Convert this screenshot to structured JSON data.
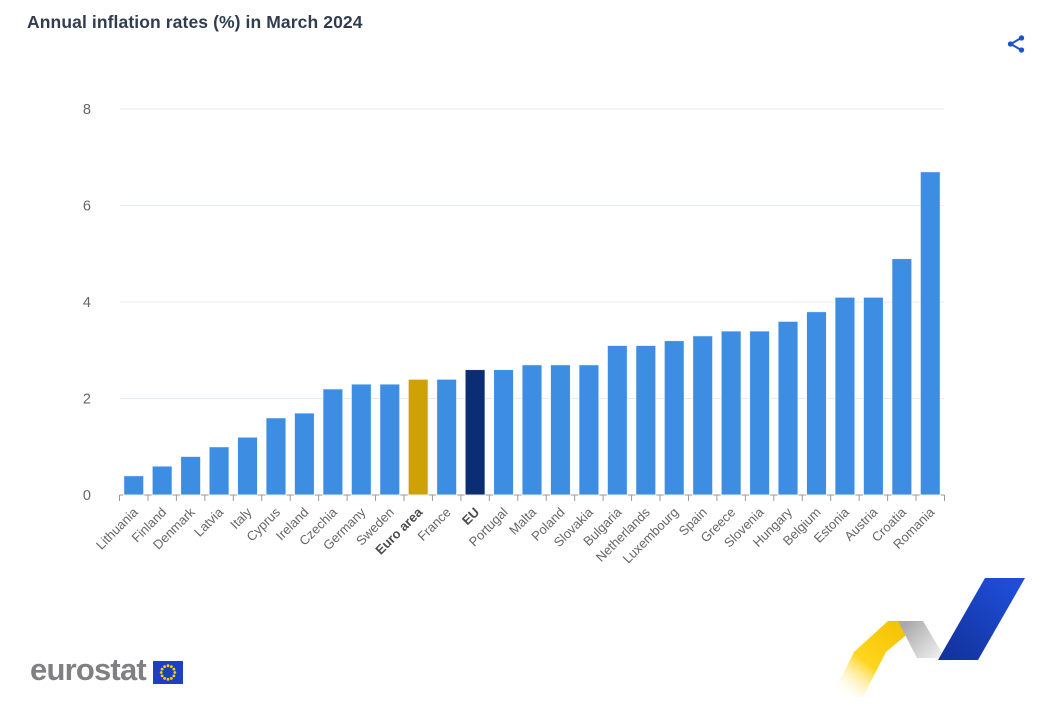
{
  "header": {
    "title": "Annual inflation rates (%) in March 2024",
    "share_label": "Share"
  },
  "chart_data": {
    "type": "bar",
    "title": "Annual inflation rates (%) in March 2024",
    "unit": "%",
    "categories": [
      "Lithuania",
      "Finland",
      "Denmark",
      "Latvia",
      "Italy",
      "Cyprus",
      "Ireland",
      "Czechia",
      "Germany",
      "Sweden",
      "Euro area",
      "France",
      "EU",
      "Portugal",
      "Malta",
      "Poland",
      "Slovakia",
      "Bulgaria",
      "Netherlands",
      "Luxembourg",
      "Spain",
      "Greece",
      "Slovenia",
      "Hungary",
      "Belgium",
      "Estonia",
      "Austria",
      "Croatia",
      "Romania"
    ],
    "values": [
      0.4,
      0.6,
      0.8,
      1.0,
      1.2,
      1.6,
      1.7,
      2.2,
      2.3,
      2.3,
      2.4,
      2.4,
      2.6,
      2.6,
      2.7,
      2.7,
      2.7,
      3.1,
      3.1,
      3.2,
      3.3,
      3.4,
      3.4,
      3.6,
      3.8,
      4.1,
      4.1,
      4.9,
      6.7
    ],
    "ylim": [
      0,
      8
    ],
    "yticks": [
      0,
      2,
      4,
      6,
      8
    ],
    "grid": true,
    "legend": false,
    "xlabel": "",
    "ylabel": "",
    "bar_color_default": "#3D8DE2",
    "highlight_colors": {
      "Euro area": "#CEA206",
      "EU": "#0B2D74"
    },
    "bold_categories": [
      "Euro area",
      "EU"
    ]
  },
  "footer": {
    "logo_text": "eurostat"
  },
  "colors": {
    "accent_blue": "#1A54C8",
    "title": "#313D4F",
    "axis_label": "#666666",
    "axis_line": "#9A9A9A",
    "gridline": "#E6EAF4"
  }
}
